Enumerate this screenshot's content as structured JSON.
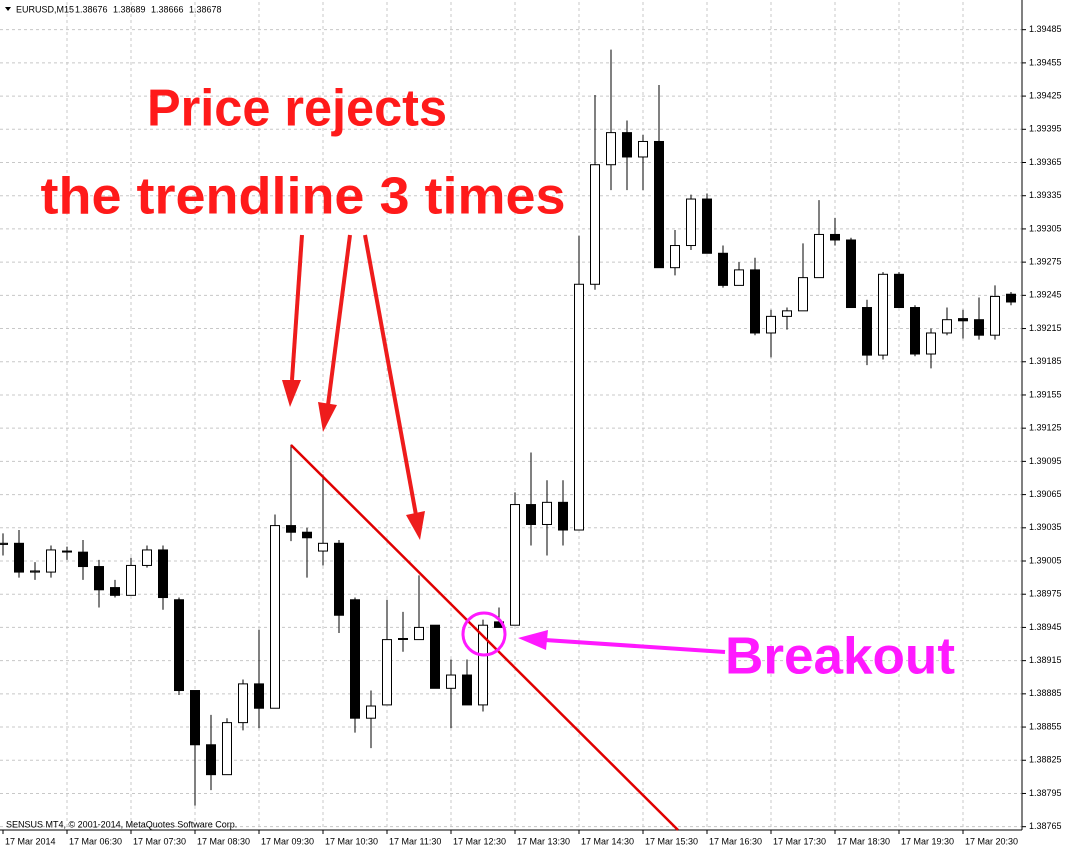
{
  "chart_data": {
    "type": "candlestick",
    "header": {
      "symbol": "EURUSD,M15",
      "quote": [
        1.38676,
        1.38689,
        1.38666,
        1.38678
      ]
    },
    "footer": "SENSUS MT4, © 2001-2014, MetaQuotes Software Corp.",
    "annotations": [
      "Price rejects",
      "the trendline 3 times",
      "Breakout"
    ],
    "categories": [
      "17 Mar 2014",
      null,
      null,
      null,
      "17 Mar 06:30",
      null,
      null,
      null,
      "17 Mar 07:30",
      null,
      null,
      null,
      "17 Mar 08:30",
      null,
      null,
      null,
      "17 Mar 09:30",
      null,
      null,
      null,
      "17 Mar 10:30",
      null,
      null,
      null,
      "17 Mar 11:30",
      null,
      null,
      null,
      "17 Mar 12:30",
      null,
      null,
      null,
      "17 Mar 13:30",
      null,
      null,
      null,
      "17 Mar 14:30",
      null,
      null,
      null,
      "17 Mar 15:30",
      null,
      null,
      null,
      "17 Mar 16:30",
      null,
      null,
      null,
      "17 Mar 17:30",
      null,
      null,
      null,
      "17 Mar 18:30",
      null,
      null,
      null,
      "17 Mar 19:30",
      null,
      null,
      null,
      "17 Mar 20:30",
      null,
      null,
      null
    ],
    "open": [
      1.3902,
      1.39021,
      1.38995,
      1.38995,
      1.39014,
      1.39013,
      1.39,
      1.38981,
      1.38974,
      1.39001,
      1.39015,
      1.3897,
      1.38888,
      1.38839,
      1.38812,
      1.38859,
      1.38894,
      1.38872,
      1.39037,
      1.39031,
      1.39014,
      1.39021,
      1.3897,
      1.38863,
      1.38875,
      1.38935,
      1.38934,
      1.38947,
      1.3889,
      1.38902,
      1.38875,
      1.3895,
      1.38947,
      1.39056,
      1.39038,
      1.39058,
      1.39033,
      1.39255,
      1.39363,
      1.39392,
      1.3937,
      1.39384,
      1.3927,
      1.3929,
      1.39332,
      1.39283,
      1.39254,
      1.39268,
      1.39211,
      1.39226,
      1.39231,
      1.39261,
      1.393,
      1.39295,
      1.39234,
      1.39191,
      1.39264,
      1.39234,
      1.39192,
      1.39211,
      1.39224,
      1.39223,
      1.39209,
      1.39246
    ],
    "high": [
      1.3903,
      1.39033,
      1.39004,
      1.39019,
      1.39018,
      1.39024,
      1.39006,
      1.38988,
      1.39008,
      1.39019,
      1.39019,
      1.38972,
      1.38888,
      1.38866,
      1.38863,
      1.38898,
      1.38943,
      1.39047,
      1.3911,
      1.39035,
      1.39083,
      1.39024,
      1.38972,
      1.38888,
      1.3897,
      1.38959,
      1.38992,
      1.38947,
      1.38916,
      1.38916,
      1.38952,
      1.38963,
      1.39067,
      1.39103,
      1.39078,
      1.39078,
      1.39299,
      1.39426,
      1.39467,
      1.39403,
      1.3939,
      1.39435,
      1.39304,
      1.39336,
      1.39337,
      1.3929,
      1.39275,
      1.39279,
      1.39232,
      1.39234,
      1.39292,
      1.39331,
      1.39315,
      1.39297,
      1.39241,
      1.39266,
      1.39266,
      1.39236,
      1.39215,
      1.39234,
      1.39232,
      1.39243,
      1.39254,
      1.39248
    ],
    "low": [
      1.3901,
      1.3899,
      1.38988,
      1.3899,
      1.39006,
      1.38988,
      1.38963,
      1.38972,
      1.38974,
      1.38999,
      1.38961,
      1.38884,
      1.38784,
      1.38798,
      1.38812,
      1.38852,
      1.38854,
      1.38872,
      1.39023,
      1.3899,
      1.39001,
      1.3894,
      1.3885,
      1.38836,
      1.38875,
      1.38923,
      1.38934,
      1.3889,
      1.38854,
      1.38875,
      1.38869,
      1.38945,
      1.38947,
      1.39019,
      1.3901,
      1.39019,
      1.39033,
      1.3925,
      1.3934,
      1.3934,
      1.3934,
      1.3927,
      1.39263,
      1.39286,
      1.39283,
      1.39252,
      1.39254,
      1.39209,
      1.39189,
      1.39214,
      1.39231,
      1.39261,
      1.3929,
      1.39234,
      1.39182,
      1.39187,
      1.39234,
      1.3919,
      1.39179,
      1.39209,
      1.39206,
      1.39205,
      1.39205,
      1.39236
    ],
    "close": [
      1.39021,
      1.38995,
      1.38996,
      1.39015,
      1.39014,
      1.39,
      1.38979,
      1.38974,
      1.39001,
      1.39015,
      1.38972,
      1.38888,
      1.38839,
      1.38812,
      1.38859,
      1.38894,
      1.38872,
      1.39037,
      1.39031,
      1.39026,
      1.39021,
      1.38956,
      1.38863,
      1.38874,
      1.38934,
      1.38935,
      1.38945,
      1.3889,
      1.38902,
      1.38875,
      1.38947,
      1.38945,
      1.39056,
      1.39038,
      1.39058,
      1.39033,
      1.39255,
      1.39363,
      1.39392,
      1.3937,
      1.39384,
      1.3927,
      1.3929,
      1.39332,
      1.39283,
      1.39254,
      1.39268,
      1.39211,
      1.39226,
      1.39231,
      1.39261,
      1.393,
      1.39295,
      1.39234,
      1.39191,
      1.39264,
      1.39234,
      1.39192,
      1.39211,
      1.39223,
      1.39222,
      1.39209,
      1.39244,
      1.39239
    ],
    "up_color": "#ffffff",
    "down_color": "#000000",
    "wick_color": "#000000",
    "ylim": [
      1.38762,
      1.3951
    ],
    "yticks": [
      1.38765,
      1.38795,
      1.38825,
      1.38855,
      1.38885,
      1.38915,
      1.38945,
      1.38975,
      1.39005,
      1.39035,
      1.39065,
      1.39095,
      1.39125,
      1.39155,
      1.39185,
      1.39215,
      1.39245,
      1.39275,
      1.39305,
      1.39335,
      1.39365,
      1.39395,
      1.39425,
      1.39455,
      1.39485
    ],
    "grid": true
  }
}
